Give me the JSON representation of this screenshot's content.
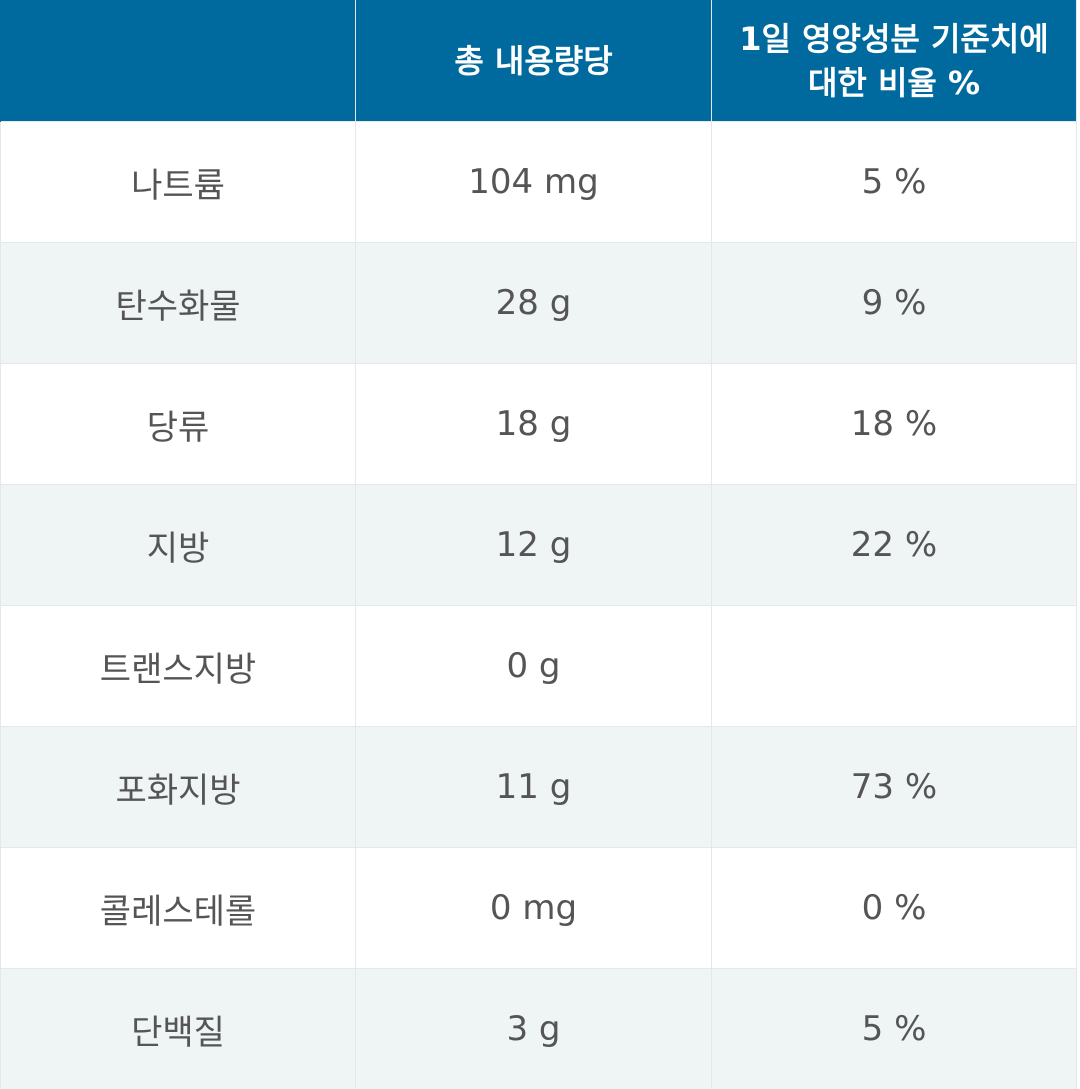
{
  "header": {
    "nutrient": "",
    "amount": "총 내용량당",
    "daily_value": "1일 영양성분 기준치에 대한 비율 %"
  },
  "rows": [
    {
      "nutrient": "나트륨",
      "amount": "104 mg",
      "daily_value": "5 %"
    },
    {
      "nutrient": "탄수화물",
      "amount": "28 g",
      "daily_value": "9 %"
    },
    {
      "nutrient": "당류",
      "amount": "18 g",
      "daily_value": "18 %"
    },
    {
      "nutrient": "지방",
      "amount": "12 g",
      "daily_value": "22 %"
    },
    {
      "nutrient": "트랜스지방",
      "amount": "0 g",
      "daily_value": ""
    },
    {
      "nutrient": "포화지방",
      "amount": "11 g",
      "daily_value": "73 %"
    },
    {
      "nutrient": "콜레스테롤",
      "amount": "0 mg",
      "daily_value": "0 %"
    },
    {
      "nutrient": "단백질",
      "amount": "3 g",
      "daily_value": "5 %"
    }
  ],
  "colors": {
    "header_bg": "#006a9e",
    "header_text": "#ffffff",
    "row_alt_bg": "#eff4f5",
    "cell_text": "#555555",
    "border": "#e3e8ea"
  }
}
